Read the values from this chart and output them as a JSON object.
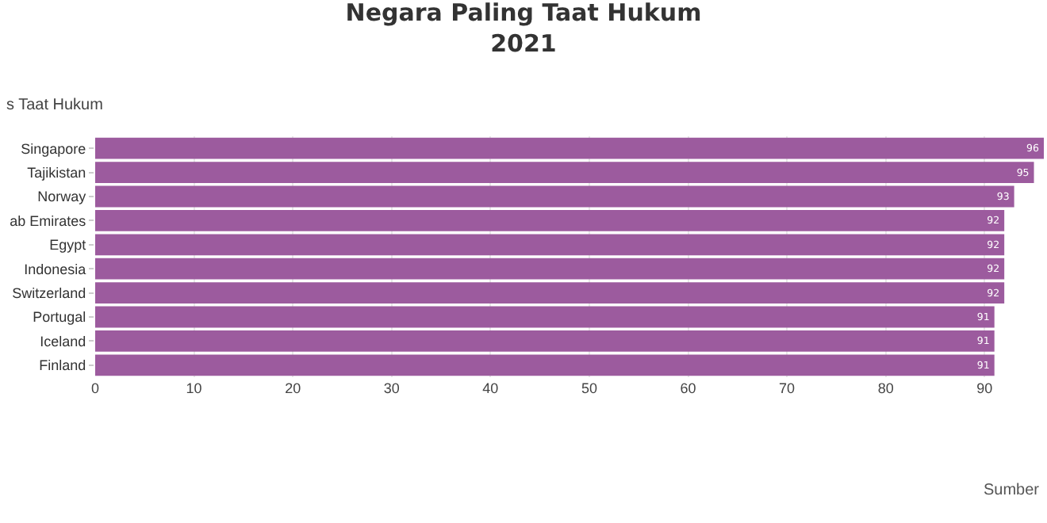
{
  "chart_data": {
    "type": "bar",
    "orientation": "horizontal",
    "title": "Negara Paling Taat Hukum",
    "subtitle": "2021",
    "ylabel": "s Taat Hukum",
    "categories": [
      "Singapore",
      "Tajikistan",
      "Norway",
      "ab Emirates",
      "Egypt",
      "Indonesia",
      "Switzerland",
      "Portugal",
      "Iceland",
      "Finland"
    ],
    "values": [
      96,
      95,
      93,
      92,
      92,
      92,
      92,
      91,
      91,
      91
    ],
    "color": "#9c5b9e",
    "data_labels": true,
    "xlim": [
      0,
      96
    ],
    "xticks": [
      0,
      10,
      20,
      30,
      40,
      50,
      60,
      70,
      80,
      90
    ],
    "grid": "x",
    "annotations": [
      "Sumber"
    ]
  }
}
